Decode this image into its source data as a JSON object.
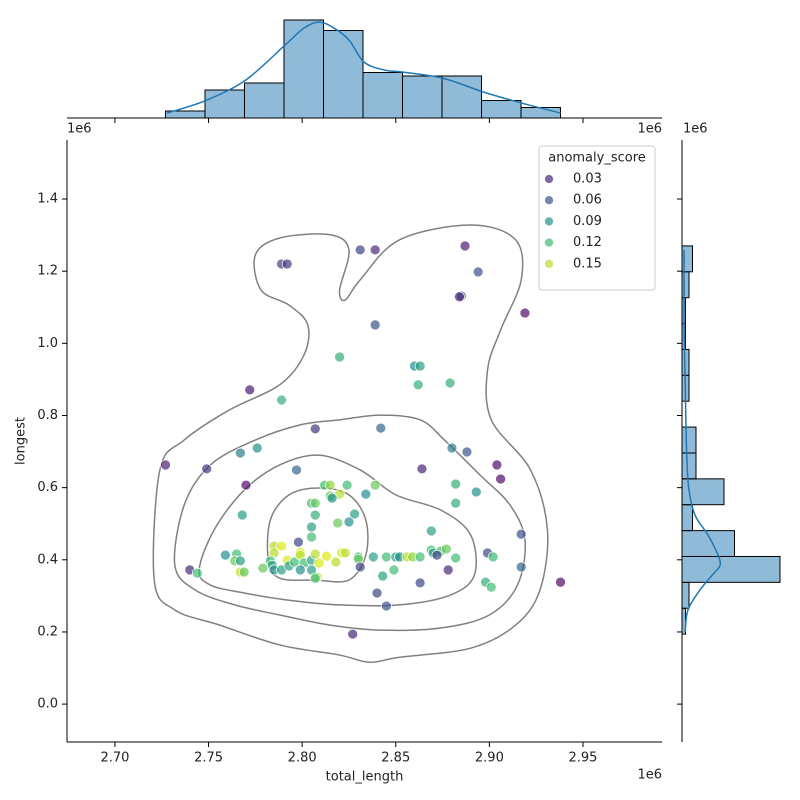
{
  "chart_data": [
    {
      "type": "scatter",
      "xlabel": "total_length",
      "ylabel": "longest",
      "xlim": [
        2674400,
        2992200
      ],
      "ylim": [
        -105000,
        1563600
      ],
      "xticks": [
        {
          "value": 2700000,
          "label": "2.70"
        },
        {
          "value": 2750000,
          "label": "2.75"
        },
        {
          "value": 2800000,
          "label": "2.80"
        },
        {
          "value": 2850000,
          "label": "2.85"
        },
        {
          "value": 2900000,
          "label": "2.90"
        },
        {
          "value": 2950000,
          "label": "2.95"
        }
      ],
      "yticks": [
        {
          "value": 0,
          "label": "0.0"
        },
        {
          "value": 200000,
          "label": "0.2"
        },
        {
          "value": 400000,
          "label": "0.4"
        },
        {
          "value": 600000,
          "label": "0.6"
        },
        {
          "value": 800000,
          "label": "0.8"
        },
        {
          "value": 1000000,
          "label": "1.0"
        },
        {
          "value": 1200000,
          "label": "1.2"
        },
        {
          "value": 1400000,
          "label": "1.4"
        }
      ],
      "x_offset_text": "1e6",
      "y_offset_text": "1e6",
      "x": [
        2831000,
        2839000,
        2887000,
        2789000,
        2792000,
        2894000,
        2885000,
        2884000,
        2919000,
        2839000,
        2820000,
        2860000,
        2863000,
        2862000,
        2879000,
        2772000,
        2789000,
        2807000,
        2842000,
        2776000,
        2767000,
        2880000,
        2888000,
        2727000,
        2749000,
        2797000,
        2864000,
        2904000,
        2770000,
        2906000,
        2812000,
        2815000,
        2824000,
        2839000,
        2882000,
        2805000,
        2807000,
        2815000,
        2820000,
        2816000,
        2834000,
        2893000,
        2882000,
        2807000,
        2828000,
        2768000,
        2805000,
        2825000,
        2819000,
        2869000,
        2917000,
        2798000,
        2805000,
        2785000,
        2789000,
        2799000,
        2792000,
        2785000,
        2759000,
        2765000,
        2764000,
        2767000,
        2767000,
        2769000,
        2779000,
        2783000,
        2784000,
        2785000,
        2789000,
        2793000,
        2796000,
        2799000,
        2801000,
        2805000,
        2807000,
        2809000,
        2813000,
        2818000,
        2821000,
        2823000,
        2830000,
        2830000,
        2831000,
        2838000,
        2845000,
        2850000,
        2852000,
        2856000,
        2859000,
        2863000,
        2869000,
        2870000,
        2874000,
        2877000,
        2872000,
        2882000,
        2899000,
        2902000,
        2917000,
        2849000,
        2843000,
        2808000,
        2799000,
        2805000,
        2740000,
        2744000,
        2863000,
        2878000,
        2898000,
        2901000,
        2840000,
        2845000,
        2827000,
        2938000,
        2807000
      ],
      "y": [
        1259000,
        1259000,
        1270000,
        1220000,
        1220000,
        1198000,
        1131000,
        1129000,
        1084000,
        1051000,
        962000,
        937000,
        937000,
        885000,
        890000,
        871000,
        843000,
        763000,
        765000,
        710000,
        696000,
        710000,
        699000,
        663000,
        652000,
        649000,
        652000,
        663000,
        607000,
        624000,
        607000,
        607000,
        607000,
        607000,
        610000,
        557000,
        557000,
        577000,
        582000,
        571000,
        582000,
        588000,
        557000,
        524000,
        527000,
        524000,
        491000,
        505000,
        502000,
        480000,
        471000,
        449000,
        463000,
        438000,
        438000,
        421000,
        399000,
        419000,
        413000,
        416000,
        397000,
        397000,
        366000,
        366000,
        377000,
        397000,
        385000,
        372000,
        372000,
        383000,
        394000,
        413000,
        391000,
        399000,
        416000,
        391000,
        410000,
        394000,
        419000,
        419000,
        408000,
        402000,
        380000,
        408000,
        408000,
        408000,
        408000,
        408000,
        408000,
        408000,
        427000,
        419000,
        424000,
        430000,
        413000,
        405000,
        419000,
        408000,
        380000,
        372000,
        355000,
        352000,
        372000,
        372000,
        372000,
        363000,
        336000,
        372000,
        338000,
        324000,
        308000,
        272000,
        194000,
        338000,
        349000
      ],
      "hue": [
        0.05,
        0.03,
        0.02,
        0.05,
        0.04,
        0.06,
        0.06,
        0.03,
        0.01,
        0.06,
        0.11,
        0.09,
        0.1,
        0.11,
        0.11,
        0.02,
        0.11,
        0.04,
        0.07,
        0.09,
        0.08,
        0.08,
        0.06,
        0.02,
        0.04,
        0.07,
        0.03,
        0.01,
        0.01,
        0.01,
        0.12,
        0.14,
        0.12,
        0.13,
        0.11,
        0.12,
        0.13,
        0.13,
        0.15,
        0.09,
        0.09,
        0.09,
        0.11,
        0.11,
        0.1,
        0.1,
        0.1,
        0.09,
        0.13,
        0.1,
        0.06,
        0.05,
        0.12,
        0.15,
        0.16,
        0.16,
        0.16,
        0.15,
        0.09,
        0.12,
        0.13,
        0.1,
        0.15,
        0.13,
        0.13,
        0.12,
        0.1,
        0.09,
        0.1,
        0.1,
        0.12,
        0.15,
        0.12,
        0.1,
        0.15,
        0.16,
        0.16,
        0.15,
        0.16,
        0.15,
        0.12,
        0.13,
        0.05,
        0.1,
        0.12,
        0.1,
        0.09,
        0.15,
        0.14,
        0.12,
        0.12,
        0.1,
        0.12,
        0.13,
        0.05,
        0.12,
        0.05,
        0.12,
        0.07,
        0.12,
        0.1,
        0.15,
        0.09,
        0.1,
        0.03,
        0.12,
        0.05,
        0.03,
        0.11,
        0.12,
        0.05,
        0.06,
        0.03,
        0.01,
        0.12
      ],
      "marker_alpha": 0.7,
      "legend": {
        "title": "anomaly_score",
        "loc": "upper right",
        "items": [
          {
            "value": 0.03,
            "color": "#482878"
          },
          {
            "value": 0.06,
            "color": "#3b528b"
          },
          {
            "value": 0.09,
            "color": "#21918c"
          },
          {
            "value": 0.12,
            "color": "#3fbc73"
          },
          {
            "value": 0.15,
            "color": "#b5de2b"
          }
        ]
      },
      "contour_color": "#808080",
      "contours": [
        {
          "x": [
            2721000,
            2724000,
            2737000,
            2761000,
            2788000,
            2801000,
            2803000,
            2793000,
            2778000,
            2775000,
            2788000,
            2815000,
            2825000,
            2820000,
            2823000,
            2831000,
            2852000,
            2890000,
            2914000,
            2917000,
            2906000,
            2899000,
            2901000,
            2922000,
            2931000,
            2927000,
            2914000,
            2890000,
            2852000,
            2836000,
            2820000,
            2788000,
            2756000,
            2732000
          ],
          "y": [
            344000,
            649000,
            732000,
            815000,
            885000,
            968000,
            1051000,
            1106000,
            1148000,
            1245000,
            1292000,
            1301000,
            1259000,
            1148000,
            1120000,
            1176000,
            1287000,
            1328000,
            1287000,
            1176000,
            1037000,
            926000,
            788000,
            649000,
            483000,
            316000,
            219000,
            155000,
            130000,
            116000,
            136000,
            164000,
            219000,
            261000
          ]
        },
        {
          "x": [
            2732000,
            2737000,
            2751000,
            2775000,
            2799000,
            2820000,
            2842000,
            2863000,
            2876000,
            2895000,
            2911000,
            2919000,
            2915000,
            2900000,
            2874000,
            2842000,
            2815000,
            2788000,
            2764000,
            2743000
          ],
          "y": [
            385000,
            552000,
            663000,
            732000,
            774000,
            788000,
            801000,
            788000,
            732000,
            635000,
            552000,
            455000,
            330000,
            247000,
            211000,
            205000,
            219000,
            247000,
            275000,
            316000
          ]
        },
        {
          "x": [
            2745000,
            2753000,
            2769000,
            2788000,
            2809000,
            2831000,
            2850000,
            2874000,
            2890000,
            2892000,
            2879000,
            2852000,
            2820000,
            2793000,
            2769000,
            2751000
          ],
          "y": [
            372000,
            483000,
            593000,
            663000,
            690000,
            649000,
            580000,
            538000,
            469000,
            358000,
            302000,
            275000,
            275000,
            288000,
            308000,
            330000
          ]
        },
        {
          "x": [
            2782000,
            2783000,
            2793000,
            2809000,
            2825000,
            2834000,
            2834000,
            2825000,
            2807000,
            2788000
          ],
          "y": [
            399000,
            510000,
            580000,
            599000,
            580000,
            510000,
            413000,
            344000,
            344000,
            349000
          ]
        }
      ]
    },
    {
      "type": "histogram",
      "orientation": "vertical",
      "color": "#1f77b4",
      "alpha": 0.5,
      "edgecolor": "#000000",
      "xlim": [
        2674400,
        2992200
      ],
      "xticks": [
        2700000,
        2750000,
        2800000,
        2850000,
        2900000,
        2950000
      ],
      "offset_text": "1e6",
      "count_lim": [
        0,
        30
      ],
      "bins": [
        2727000,
        2748100,
        2769200,
        2790300,
        2811400,
        2832500,
        2853600,
        2874700,
        2895800,
        2916900,
        2938000
      ],
      "values": [
        2,
        8,
        10,
        28,
        25,
        13,
        12,
        12,
        5,
        3
      ],
      "kde": {
        "at": [
          2727800,
          2749000,
          2770000,
          2791000,
          2801000,
          2809000,
          2817000,
          2825000,
          2833000,
          2844000,
          2854000,
          2875000,
          2897000,
          2917000,
          2938000
        ],
        "values": [
          1.4,
          5.1,
          10.9,
          20.9,
          25.7,
          27.4,
          25.7,
          22.3,
          16,
          13.7,
          13.1,
          11.4,
          7.4,
          4.3,
          1.4
        ]
      }
    },
    {
      "type": "histogram",
      "orientation": "horizontal",
      "color": "#1f77b4",
      "alpha": 0.5,
      "edgecolor": "#000000",
      "ylim": [
        -105000,
        1563600
      ],
      "yticks": [
        0,
        200000,
        400000,
        600000,
        800000,
        1000000,
        1200000,
        1400000
      ],
      "offset_text": "1e6",
      "count_lim": [
        0,
        30
      ],
      "bins": [
        194000,
        265700,
        337500,
        409200,
        480900,
        552700,
        624400,
        696100,
        767900,
        839600,
        911300,
        983100,
        1054800,
        1126500,
        1198300,
        1270000
      ],
      "values": [
        1,
        2,
        28,
        15,
        3,
        12,
        4,
        4,
        0,
        2,
        2,
        1,
        1,
        2,
        3
      ],
      "kde": {
        "at": [
          200000,
          261000,
          316000,
          366000,
          385000,
          413000,
          469000,
          524000,
          593000,
          677000,
          788000,
          898000,
          1037000,
          1148000,
          1259000
        ],
        "values": [
          0.9,
          1.7,
          5.1,
          9.4,
          10.9,
          10.3,
          7.4,
          3.7,
          2.0,
          1.4,
          1.1,
          0.9,
          0.6,
          0.6,
          0.6
        ]
      }
    }
  ]
}
